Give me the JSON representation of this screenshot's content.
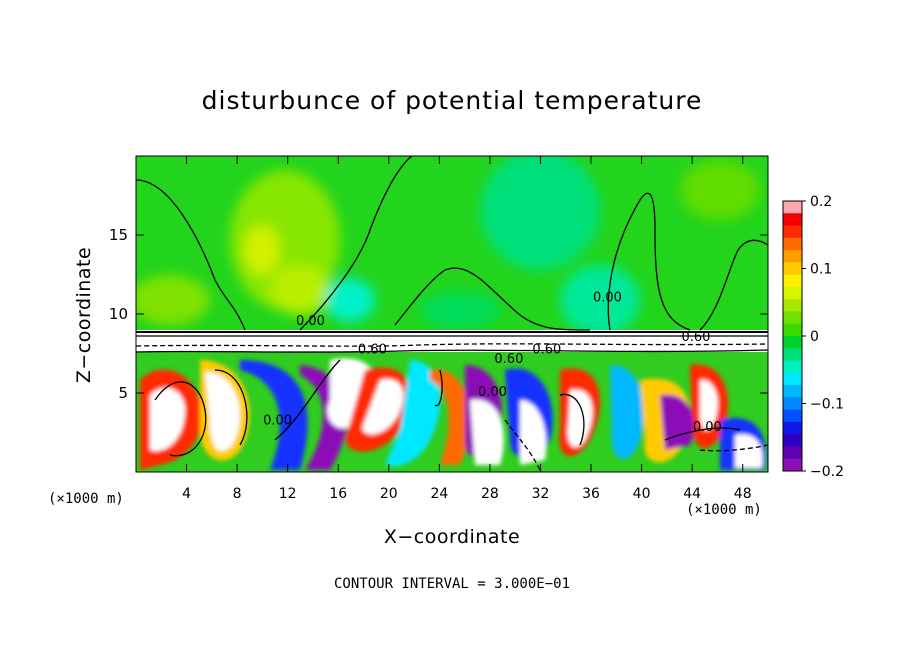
{
  "chart_data": {
    "type": "heatmap",
    "title": "disturbunce of potential temperature",
    "xlabel": "X−coordinate",
    "ylabel": "Z−coordinate",
    "x_unit_left": "(×1000 m)",
    "x_unit_right": "(×1000 m)",
    "xlim": [
      0,
      50
    ],
    "ylim": [
      0,
      20
    ],
    "xticks": [
      4,
      8,
      12,
      16,
      20,
      24,
      28,
      32,
      36,
      40,
      44,
      48
    ],
    "yticks": [
      5,
      10,
      15
    ],
    "colorbar": {
      "ticks": [
        0.2,
        0.1,
        0,
        -0.1,
        -0.2
      ],
      "tick_labels": [
        "0.2",
        "0.1",
        "0",
        "−0.1",
        "−0.2"
      ],
      "colors": [
        "#f9a8b0",
        "#f40000",
        "#ff2a00",
        "#ff6a00",
        "#ff9d00",
        "#ffcb00",
        "#ffef00",
        "#d8f500",
        "#a8e800",
        "#6fe000",
        "#38d800",
        "#00d22a",
        "#00e07a",
        "#00f0c0",
        "#00e8ff",
        "#00b8ff",
        "#0088ff",
        "#0050ff",
        "#1018e8",
        "#3000c0",
        "#6000b0",
        "#8c10b8"
      ],
      "min": -0.2,
      "max": 0.2
    },
    "contour_labels": [
      {
        "text": "0.00",
        "x": 13.8,
        "y": 9.3
      },
      {
        "text": "0.60",
        "x": 18.7,
        "y": 7.5
      },
      {
        "text": "0.60",
        "x": 32.5,
        "y": 7.5
      },
      {
        "text": "0.60",
        "x": 44.3,
        "y": 8.3
      },
      {
        "text": "0.00",
        "x": 37.3,
        "y": 10.8
      },
      {
        "text": "0.00",
        "x": 11.2,
        "y": 3.0
      },
      {
        "text": "0.00",
        "x": 28.2,
        "y": 4.8
      },
      {
        "text": "0.00",
        "x": 45.2,
        "y": 2.6
      },
      {
        "text": "0.60",
        "x": 29.5,
        "y": 6.9
      }
    ],
    "contour_interval_text": "CONTOUR INTERVAL =  3.000E−01",
    "grid": false
  }
}
